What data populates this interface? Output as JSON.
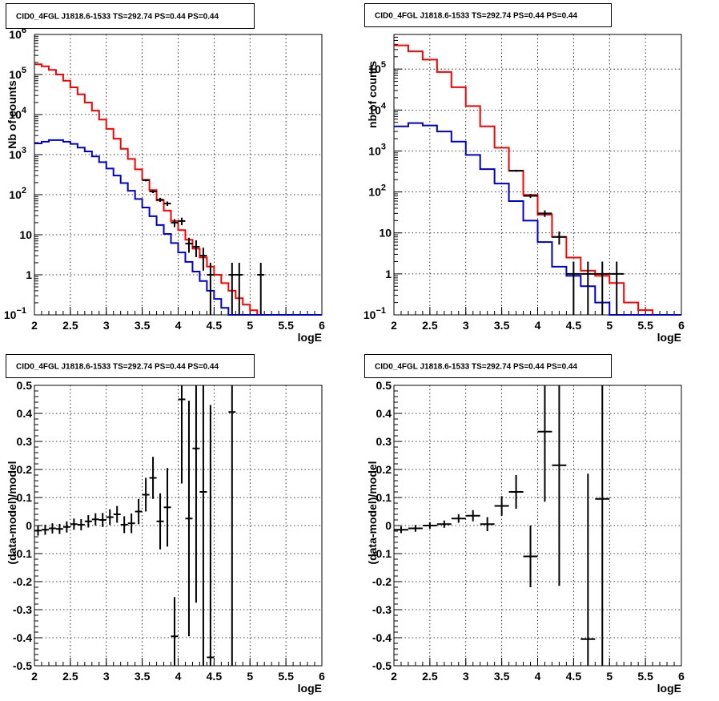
{
  "colors": {
    "data": "#000000",
    "model_total": "#ff0000",
    "model_source": "#0000cc",
    "grid": "#000000"
  },
  "chart_data": [
    {
      "type": "line",
      "title": "CID0_4FGL J1818.6-1533 TS=292.74 PS=0.44 PS=0.44",
      "xlabel": "logE",
      "ylabel": "Nb of counts",
      "xlim": [
        2,
        6
      ],
      "ylim": [
        0.1,
        1000000
      ],
      "yscale": "log",
      "grid": true,
      "xticks": [
        "2",
        "2.5",
        "3",
        "3.5",
        "4",
        "4.5",
        "5",
        "5.5",
        "6"
      ],
      "yticks": [
        {
          "value": 0.1,
          "label": "10",
          "sup": "−1"
        },
        {
          "value": 1,
          "label": "1",
          "sup": ""
        },
        {
          "value": 10,
          "label": "10",
          "sup": ""
        },
        {
          "value": 100,
          "label": "10",
          "sup": "2"
        },
        {
          "value": 1000,
          "label": "10",
          "sup": "3"
        },
        {
          "value": 10000,
          "label": "10",
          "sup": "4"
        },
        {
          "value": 100000,
          "label": "10",
          "sup": "5"
        },
        {
          "value": 1000000,
          "label": "10",
          "sup": "6"
        }
      ],
      "bin_edges": [
        2.0,
        2.1,
        2.2,
        2.3,
        2.4,
        2.5,
        2.6,
        2.7,
        2.8,
        2.9,
        3.0,
        3.1,
        3.2,
        3.3,
        3.4,
        3.5,
        3.6,
        3.7,
        3.8,
        3.9,
        4.0,
        4.1,
        4.2,
        4.3,
        4.4,
        4.5,
        4.6,
        4.7,
        4.8,
        4.9,
        5.0,
        5.1,
        5.2,
        5.3,
        5.4,
        5.5,
        5.6,
        5.7,
        5.8,
        5.9,
        6.0
      ],
      "series": [
        {
          "role": "model_total",
          "values": [
            180000,
            160000,
            130000,
            100000,
            70000,
            48000,
            32000,
            20000,
            12500,
            7500,
            4400,
            2500,
            1400,
            780,
            430,
            235,
            130,
            72,
            40,
            22,
            13,
            7.5,
            4.5,
            2.7,
            1.6,
            1.0,
            0.62,
            0.4,
            0.26,
            0.18,
            0.13,
            0.1,
            0.1,
            0.1,
            0.1,
            0.1,
            0.1,
            0.1,
            0.1,
            0.1
          ]
        },
        {
          "role": "model_source",
          "values": [
            1900,
            2100,
            2300,
            2300,
            2100,
            1850,
            1500,
            1200,
            900,
            650,
            450,
            300,
            195,
            125,
            78,
            48,
            29,
            17.5,
            10.5,
            6.2,
            3.6,
            2.1,
            1.2,
            0.7,
            0.4,
            0.25,
            0.15,
            0.1,
            0.1,
            0.1,
            0.1,
            0.1,
            0.1,
            0.1,
            0.1,
            0.1,
            0.1,
            0.1,
            0.1,
            0.1
          ]
        },
        {
          "role": "data",
          "points": [
            [
              3.55,
              230
            ],
            [
              3.65,
              120
            ],
            [
              3.75,
              75
            ],
            [
              3.85,
              60
            ],
            [
              3.95,
              20
            ],
            [
              4.05,
              22
            ],
            [
              4.15,
              6
            ],
            [
              4.25,
              5
            ],
            [
              4.35,
              3
            ],
            [
              4.45,
              1
            ],
            [
              4.75,
              1
            ],
            [
              4.85,
              1
            ],
            [
              5.15,
              1
            ]
          ]
        }
      ]
    },
    {
      "type": "line",
      "title": "CID0_4FGL J1818.6-1533 TS=292.74 PS=0.44 PS=0.44",
      "xlabel": "logE",
      "ylabel": "nb of counts",
      "xlim": [
        2,
        6
      ],
      "ylim": [
        0.1,
        700000
      ],
      "yscale": "log",
      "grid": true,
      "xticks": [
        "2",
        "2.5",
        "3",
        "3.5",
        "4",
        "4.5",
        "5",
        "5.5",
        "6"
      ],
      "yticks": [
        {
          "value": 0.1,
          "label": "10",
          "sup": "−1"
        },
        {
          "value": 1,
          "label": "1",
          "sup": ""
        },
        {
          "value": 10,
          "label": "10",
          "sup": ""
        },
        {
          "value": 100,
          "label": "10",
          "sup": "2"
        },
        {
          "value": 1000,
          "label": "10",
          "sup": "3"
        },
        {
          "value": 10000,
          "label": "10",
          "sup": "4"
        },
        {
          "value": 100000,
          "label": "10",
          "sup": "5"
        }
      ],
      "bin_edges": [
        2.0,
        2.2,
        2.4,
        2.6,
        2.8,
        3.0,
        3.2,
        3.4,
        3.6,
        3.8,
        4.0,
        4.2,
        4.4,
        4.6,
        4.8,
        5.0,
        5.2,
        5.4,
        5.6,
        5.8,
        6.0
      ],
      "series": [
        {
          "role": "model_total",
          "values": [
            380000,
            270000,
            170000,
            85000,
            36000,
            12500,
            4000,
            1200,
            330,
            85,
            28,
            8,
            2.5,
            1.2,
            0.9,
            0.6,
            0.2,
            0.13,
            0.1,
            0.1
          ]
        },
        {
          "role": "model_source",
          "values": [
            4000,
            4800,
            4200,
            3000,
            1700,
            800,
            360,
            160,
            60,
            20,
            6,
            1.5,
            0.9,
            0.5,
            0.2,
            0.1,
            0.1,
            0.1,
            0.1,
            0.1
          ]
        },
        {
          "role": "data",
          "points": [
            [
              3.7,
              330
            ],
            [
              3.9,
              80
            ],
            [
              4.1,
              30
            ],
            [
              4.3,
              8
            ],
            [
              4.5,
              1
            ],
            [
              4.7,
              1
            ],
            [
              4.9,
              1
            ],
            [
              5.1,
              1
            ]
          ]
        }
      ]
    },
    {
      "type": "scatter",
      "title": "CID0_4FGL J1818.6-1533 TS=292.74 PS=0.44 PS=0.44",
      "xlabel": "logE",
      "ylabel": "(data-model)/model",
      "xlim": [
        2,
        6
      ],
      "ylim": [
        -0.5,
        0.5
      ],
      "grid": true,
      "xticks": [
        "2",
        "2.5",
        "3",
        "3.5",
        "4",
        "4.5",
        "5",
        "5.5",
        "6"
      ],
      "yticks": [
        "-0.5",
        "-0.4",
        "-0.3",
        "-0.2",
        "-0.1",
        "0",
        "0.1",
        "0.2",
        "0.3",
        "0.4",
        "0.5"
      ],
      "bin_halfwidth": 0.05,
      "points": [
        [
          2.05,
          -0.018,
          0.018
        ],
        [
          2.15,
          -0.015,
          0.018
        ],
        [
          2.25,
          -0.01,
          0.018
        ],
        [
          2.35,
          -0.012,
          0.018
        ],
        [
          2.45,
          -0.005,
          0.02
        ],
        [
          2.55,
          0.005,
          0.02
        ],
        [
          2.65,
          0.003,
          0.02
        ],
        [
          2.75,
          0.015,
          0.022
        ],
        [
          2.85,
          0.022,
          0.022
        ],
        [
          2.95,
          0.02,
          0.025
        ],
        [
          3.05,
          0.03,
          0.028
        ],
        [
          3.15,
          0.04,
          0.03
        ],
        [
          3.25,
          0.003,
          0.03
        ],
        [
          3.35,
          0.008,
          0.035
        ],
        [
          3.45,
          0.05,
          0.045
        ],
        [
          3.55,
          0.11,
          0.06
        ],
        [
          3.65,
          0.17,
          0.075
        ],
        [
          3.75,
          0.015,
          0.1
        ],
        [
          3.85,
          0.065,
          0.14
        ],
        [
          3.95,
          -0.395,
          0.14
        ],
        [
          4.05,
          0.45,
          0.3
        ],
        [
          4.15,
          0.025,
          0.42
        ],
        [
          4.25,
          0.275,
          0.55
        ],
        [
          4.35,
          0.12,
          0.8
        ],
        [
          4.45,
          -0.47,
          0.9
        ],
        [
          4.75,
          0.405,
          1.2
        ]
      ]
    },
    {
      "type": "scatter",
      "title": "CID0_4FGL J1818.6-1533 TS=292.74 PS=0.44 PS=0.44",
      "xlabel": "logE",
      "ylabel": "(data-model)/model",
      "xlim": [
        2,
        6
      ],
      "ylim": [
        -0.5,
        0.5
      ],
      "grid": true,
      "xticks": [
        "2",
        "2.5",
        "3",
        "3.5",
        "4",
        "4.5",
        "5",
        "5.5",
        "6"
      ],
      "yticks": [
        "-0.5",
        "-0.4",
        "-0.3",
        "-0.2",
        "-0.1",
        "0",
        "0.1",
        "0.2",
        "0.3",
        "0.4",
        "0.5"
      ],
      "bin_halfwidth": 0.1,
      "points": [
        [
          2.1,
          -0.015,
          0.012
        ],
        [
          2.3,
          -0.01,
          0.012
        ],
        [
          2.5,
          0.0,
          0.012
        ],
        [
          2.7,
          0.005,
          0.013
        ],
        [
          2.9,
          0.025,
          0.015
        ],
        [
          3.1,
          0.035,
          0.02
        ],
        [
          3.3,
          0.005,
          0.025
        ],
        [
          3.5,
          0.07,
          0.035
        ],
        [
          3.7,
          0.12,
          0.06
        ],
        [
          3.9,
          -0.11,
          0.11
        ],
        [
          4.1,
          0.335,
          0.25
        ],
        [
          4.3,
          0.215,
          0.43
        ],
        [
          4.7,
          -0.405,
          0.59
        ],
        [
          4.9,
          0.095,
          1.2
        ]
      ]
    }
  ]
}
